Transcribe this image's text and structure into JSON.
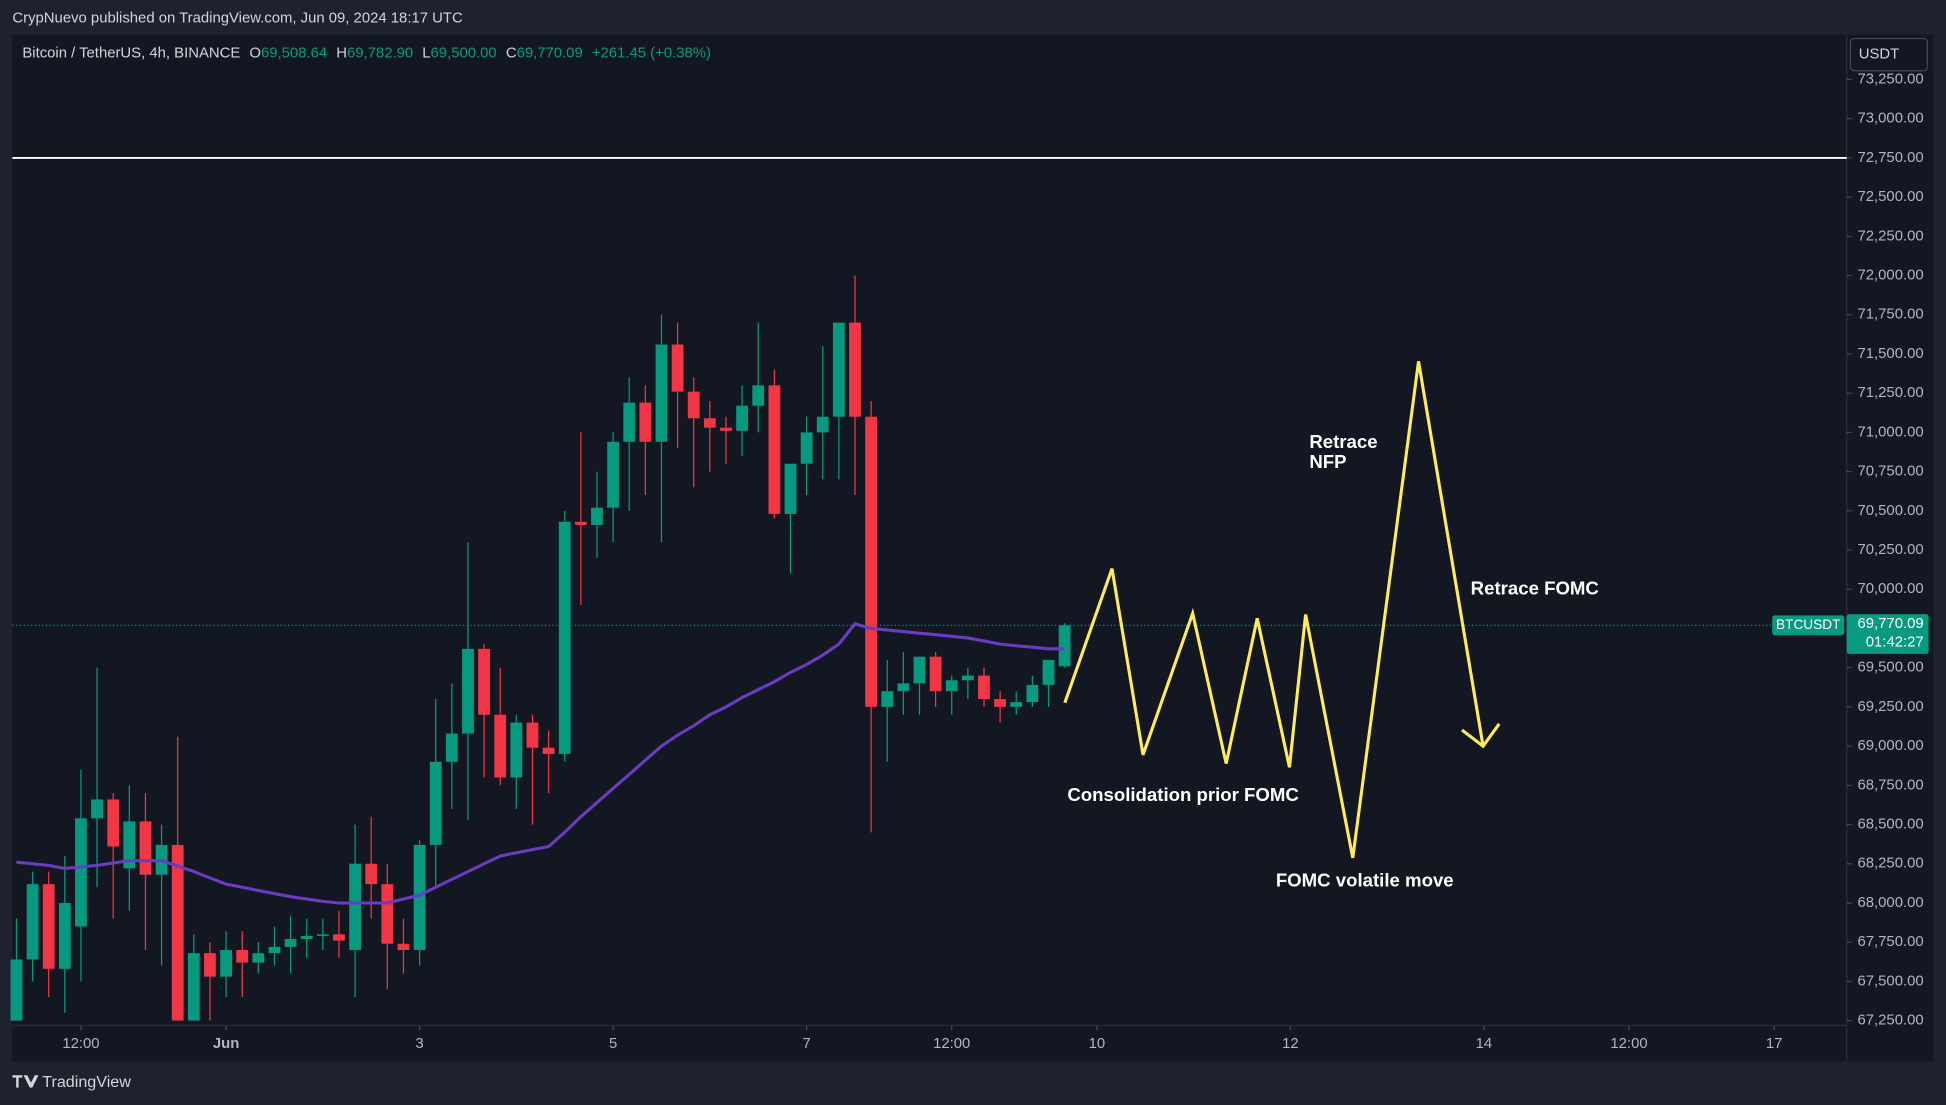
{
  "header": {
    "published": "CrypNuevo published on TradingView.com, Jun 09, 2024 18:17 UTC"
  },
  "footer": {
    "brand": "TradingView"
  },
  "currency_button": "USDT",
  "chart_data": {
    "type": "candlestick",
    "legend": {
      "symbol": "Bitcoin / TetherUS, 4h, BINANCE",
      "o_key": "O",
      "o": "69,508.64",
      "h_key": "H",
      "h": "69,782.90",
      "l_key": "L",
      "l": "69,500.00",
      "c_key": "C",
      "c": "69,770.09",
      "change": "+261.45 (+0.38%)"
    },
    "price_label": {
      "symbol": "BTCUSDT",
      "price": "69,770.09",
      "countdown": "01:42:27"
    },
    "up_color": "#089981",
    "down_color": "#f23645",
    "open": [
      67250,
      67640,
      68120,
      67580,
      67850,
      68540,
      68660,
      68220,
      68520,
      68180,
      68370,
      67250,
      67680,
      67530,
      67700,
      67620,
      67680,
      67720,
      67770,
      67790,
      67800,
      67700,
      68250,
      68120,
      67740,
      67700,
      68370,
      68900,
      69080,
      69620,
      69200,
      68800,
      69150,
      68990,
      68950,
      70430,
      70410,
      70520,
      70940,
      71190,
      70940,
      71560,
      71260,
      71090,
      71030,
      71010,
      71170,
      71300,
      70480,
      70800,
      71000,
      71100,
      71700,
      71100,
      69250,
      69350,
      69400,
      69570,
      69350,
      69420,
      69450,
      69300,
      69250,
      69280,
      69390,
      69508.64
    ],
    "high": [
      67900,
      68200,
      68200,
      68300,
      68850,
      69500,
      68700,
      68750,
      68700,
      68500,
      69060,
      67800,
      67750,
      67820,
      67820,
      67750,
      67850,
      67920,
      67900,
      67900,
      67950,
      68500,
      68550,
      68250,
      67900,
      68400,
      69300,
      69400,
      70300,
      69650,
      69500,
      69200,
      69200,
      69100,
      70500,
      71000,
      70750,
      71000,
      71350,
      71300,
      71750,
      71700,
      71350,
      71200,
      71100,
      71300,
      71700,
      71400,
      70800,
      71100,
      71550,
      71700,
      72000,
      71200,
      69550,
      69600,
      69550,
      69600,
      69450,
      69500,
      69500,
      69350,
      69350,
      69450,
      69500,
      69782.9
    ],
    "low": [
      67250,
      67500,
      67400,
      67300,
      67500,
      68100,
      67900,
      67950,
      67700,
      67600,
      67250,
      67250,
      67250,
      67400,
      67400,
      67550,
      67600,
      67550,
      67650,
      67700,
      67650,
      67400,
      67900,
      67450,
      67550,
      67600,
      68100,
      68600,
      68530,
      68800,
      68750,
      68600,
      68500,
      68700,
      68900,
      69900,
      70200,
      70300,
      70500,
      70600,
      70300,
      70900,
      70650,
      70750,
      70800,
      70850,
      71000,
      70450,
      70100,
      70600,
      70700,
      70700,
      70600,
      68450,
      68900,
      69200,
      69200,
      69250,
      69200,
      69300,
      69250,
      69150,
      69200,
      69250,
      69250,
      69500.0
    ],
    "close": [
      67640,
      68120,
      67580,
      68000,
      68540,
      68660,
      68360,
      68520,
      68180,
      68370,
      67250,
      67680,
      67530,
      67700,
      67620,
      67680,
      67720,
      67770,
      67790,
      67800,
      67760,
      68250,
      68120,
      67740,
      67700,
      68370,
      68900,
      69080,
      69620,
      69200,
      68800,
      69150,
      68990,
      68950,
      70430,
      70410,
      70520,
      70940,
      71190,
      70940,
      71560,
      71260,
      71090,
      71030,
      71010,
      71170,
      71300,
      70480,
      70800,
      71000,
      71100,
      71700,
      71100,
      69250,
      69350,
      69400,
      69570,
      69350,
      69420,
      69450,
      69300,
      69250,
      69280,
      69390,
      69550,
      69770.09
    ],
    "series": [
      {
        "color": "#6a3cc0",
        "values": [
          68260,
          68250,
          68240,
          68220,
          68230,
          68240,
          68255,
          68270,
          68270,
          68270,
          68235,
          68200,
          68160,
          68120,
          68100,
          68080,
          68060,
          68040,
          68025,
          68010,
          68000,
          68000,
          68000,
          68000,
          68025,
          68050,
          68100,
          68150,
          68200,
          68250,
          68300,
          68320,
          68340,
          68360,
          68450,
          68550,
          68640,
          68730,
          68820,
          68910,
          69000,
          69070,
          69130,
          69200,
          69250,
          69310,
          69360,
          69410,
          69470,
          69520,
          69580,
          69650,
          69780,
          69750,
          69740,
          69730,
          69720,
          69710,
          69700,
          69690,
          69670,
          69650,
          69640,
          69630,
          69620,
          69620
        ]
      }
    ],
    "hlines": [
      72750
    ],
    "xlim": [
      -0.25,
      113.5
    ],
    "xticks": [
      {
        "value": 4,
        "label": "12:00"
      },
      {
        "value": 13,
        "label": "Jun"
      },
      {
        "value": 25,
        "label": "3"
      },
      {
        "value": 37,
        "label": "5"
      },
      {
        "value": 49,
        "label": "7"
      },
      {
        "value": 58,
        "label": "12:00"
      },
      {
        "value": 67,
        "label": "10"
      },
      {
        "value": 79,
        "label": "12"
      },
      {
        "value": 91,
        "label": "14"
      },
      {
        "value": 100,
        "label": "12:00"
      },
      {
        "value": 109,
        "label": "17"
      }
    ],
    "ylim": [
      66989,
      73535
    ],
    "yticks": [
      {
        "value": 67250,
        "label": "67,250.00"
      },
      {
        "value": 67500,
        "label": "67,500.00"
      },
      {
        "value": 67750,
        "label": "67,750.00"
      },
      {
        "value": 68000,
        "label": "68,000.00"
      },
      {
        "value": 68250,
        "label": "68,250.00"
      },
      {
        "value": 68500,
        "label": "68,500.00"
      },
      {
        "value": 68750,
        "label": "68,750.00"
      },
      {
        "value": 69000,
        "label": "69,000.00"
      },
      {
        "value": 69250,
        "label": "69,250.00"
      },
      {
        "value": 69500,
        "label": "69,500.00"
      },
      {
        "value": 69750,
        "label": "69,750.00"
      },
      {
        "value": 70000,
        "label": "70,000.00"
      },
      {
        "value": 70250,
        "label": "70,250.00"
      },
      {
        "value": 70500,
        "label": "70,500.00"
      },
      {
        "value": 70750,
        "label": "70,750.00"
      },
      {
        "value": 71000,
        "label": "71,000.00"
      },
      {
        "value": 71250,
        "label": "71,250.00"
      },
      {
        "value": 71500,
        "label": "71,500.00"
      },
      {
        "value": 71750,
        "label": "71,750.00"
      },
      {
        "value": 72000,
        "label": "72,000.00"
      },
      {
        "value": 72250,
        "label": "72,250.00"
      },
      {
        "value": 72500,
        "label": "72,500.00"
      },
      {
        "value": 72750,
        "label": "72,750.00"
      },
      {
        "value": 73000,
        "label": "73,000.00"
      },
      {
        "value": 73250,
        "label": "73,250.00"
      }
    ],
    "annotations": {
      "retrace_nfp": [
        "Retrace",
        "NFP"
      ],
      "retrace_fomc": "Retrace FOMC",
      "consolidation": "Consolidation prior FOMC",
      "volatile": "FOMC volatile move"
    }
  }
}
